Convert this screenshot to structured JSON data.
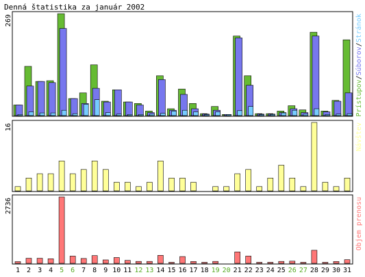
{
  "colors": {
    "frame": "#ffffff",
    "panel_border": "#000000",
    "pristupov": "#66bb33",
    "suborov": "#7777ee",
    "stranok": "#77ccff",
    "navstev": "#ffff99",
    "objem": "#ff7777",
    "weekday_label": "#000000",
    "weekend_label": "#55aa22"
  },
  "chart_data": [
    {
      "type": "bar",
      "title": "Denná štatistika za január 2002",
      "ymax_label": "269",
      "ylim": [
        0,
        269
      ],
      "legend": [
        {
          "text": "Prístupov",
          "color": "#66bb33"
        },
        {
          "text": "/",
          "color": "#000000"
        },
        {
          "text": "Súborov",
          "color": "#7777ee"
        },
        {
          "text": "/",
          "color": "#000000"
        },
        {
          "text": "Stránok",
          "color": "#77ccff"
        }
      ],
      "categories": [
        "1",
        "2",
        "3",
        "4",
        "5",
        "6",
        "7",
        "8",
        "9",
        "10",
        "11",
        "12",
        "13",
        "14",
        "15",
        "16",
        "17",
        "18",
        "19",
        "20",
        "21",
        "22",
        "23",
        "24",
        "25",
        "26",
        "27",
        "28",
        "29",
        "30",
        "31"
      ],
      "series": [
        {
          "name": "Prístupov",
          "color": "#66bb33",
          "values": [
            28,
            130,
            90,
            92,
            269,
            45,
            60,
            134,
            38,
            68,
            36,
            32,
            12,
            105,
            18,
            70,
            32,
            5,
            24,
            3,
            210,
            105,
            5,
            5,
            12,
            26,
            15,
            220,
            12,
            40,
            200
          ]
        },
        {
          "name": "Súborov",
          "color": "#7777ee",
          "values": [
            28,
            78,
            90,
            87,
            230,
            45,
            32,
            72,
            36,
            68,
            36,
            28,
            8,
            95,
            14,
            56,
            18,
            4,
            14,
            3,
            205,
            80,
            4,
            4,
            8,
            18,
            8,
            210,
            10,
            38,
            60
          ]
        },
        {
          "name": "Stránok",
          "color": "#77ccff",
          "values": [
            3,
            10,
            7,
            7,
            14,
            5,
            30,
            42,
            8,
            4,
            3,
            3,
            4,
            6,
            12,
            14,
            10,
            2,
            10,
            1,
            13,
            24,
            2,
            3,
            7,
            14,
            4,
            18,
            3,
            4,
            5
          ]
        }
      ]
    },
    {
      "type": "bar",
      "ymax_label": "16",
      "ylim": [
        0,
        16
      ],
      "legend": [
        {
          "text": "Návštev",
          "color": "#ffff99"
        }
      ],
      "categories": [
        "1",
        "2",
        "3",
        "4",
        "5",
        "6",
        "7",
        "8",
        "9",
        "10",
        "11",
        "12",
        "13",
        "14",
        "15",
        "16",
        "17",
        "18",
        "19",
        "20",
        "21",
        "22",
        "23",
        "24",
        "25",
        "26",
        "27",
        "28",
        "29",
        "30",
        "31"
      ],
      "series": [
        {
          "name": "Návštev",
          "color": "#ffff99",
          "values": [
            1,
            3,
            4,
            4,
            7,
            4,
            5,
            7,
            5,
            2,
            2,
            1,
            2,
            7,
            3,
            3,
            2,
            0,
            1,
            1,
            4,
            5,
            1,
            3,
            6,
            3,
            1,
            16,
            2,
            1,
            3
          ]
        }
      ]
    },
    {
      "type": "bar",
      "ymax_label": "2736",
      "ylim": [
        0,
        2736
      ],
      "legend": [
        {
          "text": "Objem prenosu",
          "color": "#ff7777"
        }
      ],
      "categories": [
        "1",
        "2",
        "3",
        "4",
        "5",
        "6",
        "7",
        "8",
        "9",
        "10",
        "11",
        "12",
        "13",
        "14",
        "15",
        "16",
        "17",
        "18",
        "19",
        "20",
        "21",
        "22",
        "23",
        "24",
        "25",
        "26",
        "27",
        "28",
        "29",
        "30",
        "31"
      ],
      "series": [
        {
          "name": "Objem prenosu",
          "color": "#ff7777",
          "values": [
            70,
            210,
            210,
            190,
            2736,
            300,
            200,
            320,
            140,
            240,
            120,
            80,
            80,
            330,
            20,
            280,
            75,
            20,
            80,
            0,
            470,
            300,
            20,
            25,
            80,
            90,
            25,
            540,
            25,
            75,
            150
          ]
        }
      ]
    }
  ],
  "x_labels": {
    "weekend_days": [
      "5",
      "6",
      "12",
      "13",
      "19",
      "20",
      "26",
      "27"
    ]
  }
}
